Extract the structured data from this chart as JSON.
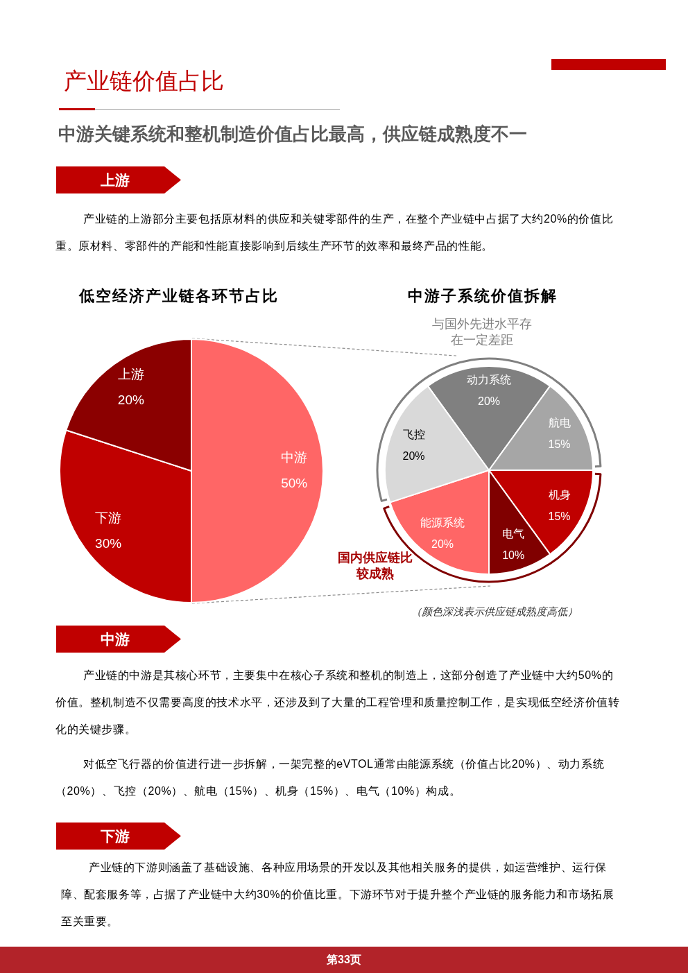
{
  "chart_data": [
    {
      "type": "pie",
      "title": "低空经济产业链各环节占比",
      "categories": [
        "中游",
        "下游",
        "上游"
      ],
      "values": [
        50,
        30,
        20
      ],
      "colors": [
        "#ff6666",
        "#c00000",
        "#8b0000"
      ],
      "value_labels": [
        "50%",
        "30%",
        "20%"
      ],
      "annotations": [
        "产业链价值占比",
        "中游关键系统和整机制造价值占比最高，供应链成熟度不一",
        "上游",
        "产业链的上游部分主要包括原材料的供应和关键零部件的生产，在整个产业链中占据了大约20%的价值比重。原材料、零部件的产能和性能直接影响到后续生产环节的效率和最终产品的性能。"
      ]
    },
    {
      "type": "pie",
      "title": "中游子系统价值拆解",
      "categories": [
        "动力系统",
        "航电",
        "机身",
        "电气",
        "能源系统",
        "飞控"
      ],
      "values": [
        20,
        15,
        15,
        10,
        20,
        20
      ],
      "colors": [
        "#808080",
        "#a6a6a6",
        "#c00000",
        "#800000",
        "#ff6666",
        "#d9d9d9"
      ],
      "value_labels": [
        "20%",
        "15%",
        "15%",
        "10%",
        "20%",
        "20%"
      ],
      "annotations": [
        "与国外先进水平存在一定差距",
        "国内供应链比较成熟",
        "（颜色深浅表示供应链成熟度高低）",
        "中游",
        "产业链的中游是其核心环节，主要集中在核心子系统和整机的制造上，这部分创造了产业链中大约50%的价值。整机制造不仅需要高度的技术水平，还涉及到了大量的工程管理和质量控制工作，是实现低空经济价值转化的关键步骤。",
        "对低空飞行器的价值进行进一步拆解，一架完整的eVTOL通常由能源系统（价值占比20%）、动力系统（20%）、飞控（20%）、航电（15%）、机身（15%）、电气（10%）构成。",
        "下游",
        "产业链的下游则涵盖了基础设施、各种应用场景的开发以及其他相关服务的提供，如运营维护、运行保障、配套服务等，占据了产业链中大约30%的价值比重。下游环节对于提升整个产业链的服务能力和市场拓展至关重要。",
        "第33页"
      ]
    }
  ]
}
